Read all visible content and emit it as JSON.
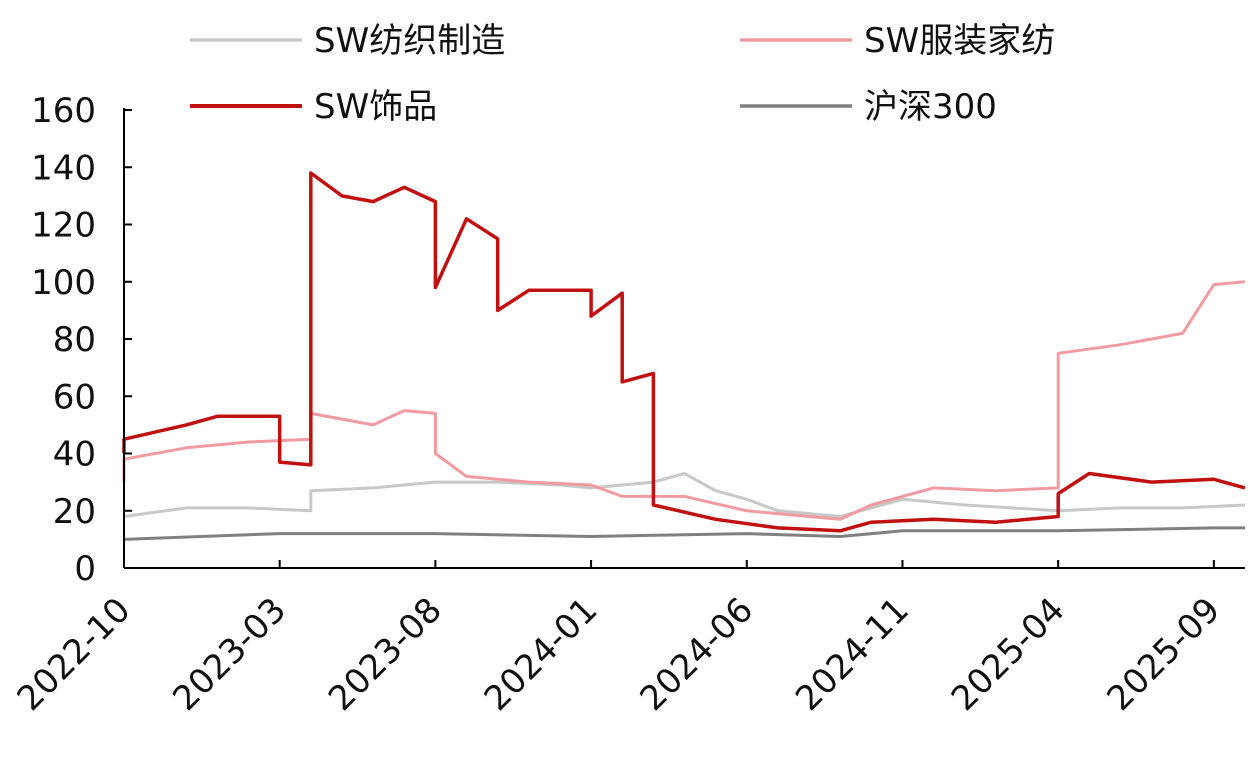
{
  "chart_data": {
    "type": "line",
    "title": "",
    "xlabel": "",
    "ylabel": "",
    "ylim": [
      0,
      160
    ],
    "yticks": [
      0,
      20,
      40,
      60,
      80,
      100,
      120,
      140,
      160
    ],
    "xticks": [
      "2022-10",
      "2023-03",
      "2023-08",
      "2024-01",
      "2024-06",
      "2024-11",
      "2025-04",
      "2025-09"
    ],
    "xlim": [
      "2022-10",
      "2025-10"
    ],
    "grid": false,
    "legend_position": "top",
    "series": [
      {
        "name": "SW纺织制造",
        "color": "#c8c8c8",
        "points": [
          [
            "2022-10",
            18
          ],
          [
            "2022-12",
            21
          ],
          [
            "2023-02",
            21
          ],
          [
            "2023-04",
            20
          ],
          [
            "2023-04",
            27
          ],
          [
            "2023-06",
            28
          ],
          [
            "2023-08",
            30
          ],
          [
            "2023-10",
            30
          ],
          [
            "2023-12",
            29
          ],
          [
            "2024-01",
            28
          ],
          [
            "2024-03",
            30
          ],
          [
            "2024-04",
            33
          ],
          [
            "2024-05",
            27
          ],
          [
            "2024-06",
            24
          ],
          [
            "2024-07",
            20
          ],
          [
            "2024-09",
            18
          ],
          [
            "2024-11",
            24
          ],
          [
            "2025-01",
            22
          ],
          [
            "2025-04",
            20
          ],
          [
            "2025-06",
            21
          ],
          [
            "2025-08",
            21
          ],
          [
            "2025-10",
            22
          ]
        ]
      },
      {
        "name": "SW服装家纺",
        "color": "#f09aa2",
        "points": [
          [
            "2022-10",
            30
          ],
          [
            "2022-10",
            38
          ],
          [
            "2022-12",
            42
          ],
          [
            "2023-02",
            44
          ],
          [
            "2023-04",
            45
          ],
          [
            "2023-04",
            54
          ],
          [
            "2023-06",
            50
          ],
          [
            "2023-07",
            55
          ],
          [
            "2023-08",
            54
          ],
          [
            "2023-08",
            40
          ],
          [
            "2023-09",
            32
          ],
          [
            "2023-11",
            30
          ],
          [
            "2024-01",
            29
          ],
          [
            "2024-02",
            25
          ],
          [
            "2024-04",
            25
          ],
          [
            "2024-06",
            20
          ],
          [
            "2024-08",
            18
          ],
          [
            "2024-09",
            17
          ],
          [
            "2024-10",
            22
          ],
          [
            "2024-12",
            28
          ],
          [
            "2025-02",
            27
          ],
          [
            "2025-04",
            28
          ],
          [
            "2025-04",
            75
          ],
          [
            "2025-06",
            78
          ],
          [
            "2025-08",
            82
          ],
          [
            "2025-09",
            99
          ],
          [
            "2025-10",
            100
          ]
        ]
      },
      {
        "name": "SW饰品",
        "color": "#c01010",
        "points": [
          [
            "2022-10",
            40
          ],
          [
            "2022-10",
            45
          ],
          [
            "2022-12",
            50
          ],
          [
            "2023-01",
            53
          ],
          [
            "2023-03",
            53
          ],
          [
            "2023-03",
            37
          ],
          [
            "2023-04",
            36
          ],
          [
            "2023-04",
            138
          ],
          [
            "2023-05",
            130
          ],
          [
            "2023-06",
            128
          ],
          [
            "2023-07",
            133
          ],
          [
            "2023-08",
            128
          ],
          [
            "2023-08",
            120
          ],
          [
            "2023-08",
            98
          ],
          [
            "2023-09",
            122
          ],
          [
            "2023-10",
            115
          ],
          [
            "2023-10",
            90
          ],
          [
            "2023-11",
            97
          ],
          [
            "2024-01",
            97
          ],
          [
            "2024-01",
            88
          ],
          [
            "2024-02",
            96
          ],
          [
            "2024-02",
            65
          ],
          [
            "2024-03",
            68
          ],
          [
            "2024-03",
            22
          ],
          [
            "2024-05",
            17
          ],
          [
            "2024-07",
            14
          ],
          [
            "2024-09",
            13
          ],
          [
            "2024-10",
            16
          ],
          [
            "2024-12",
            17
          ],
          [
            "2025-02",
            16
          ],
          [
            "2025-04",
            18
          ],
          [
            "2025-04",
            26
          ],
          [
            "2025-05",
            33
          ],
          [
            "2025-07",
            30
          ],
          [
            "2025-09",
            31
          ],
          [
            "2025-10",
            28
          ]
        ]
      },
      {
        "name": "沪深300",
        "color": "#808080",
        "points": [
          [
            "2022-10",
            10
          ],
          [
            "2023-03",
            12
          ],
          [
            "2023-08",
            12
          ],
          [
            "2024-01",
            11
          ],
          [
            "2024-06",
            12
          ],
          [
            "2024-09",
            11
          ],
          [
            "2024-11",
            13
          ],
          [
            "2025-04",
            13
          ],
          [
            "2025-09",
            14
          ],
          [
            "2025-10",
            14
          ]
        ]
      }
    ]
  }
}
